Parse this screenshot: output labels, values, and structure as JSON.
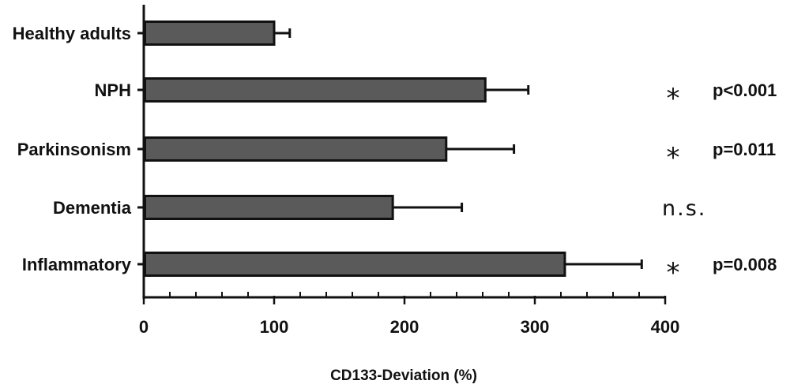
{
  "chart_data": {
    "type": "bar",
    "orientation": "horizontal",
    "xlabel": "CD133-Deviation (%)",
    "xlim": [
      0,
      400
    ],
    "xticks": [
      0,
      100,
      200,
      300,
      400
    ],
    "minor_tick_step": 20,
    "bar_color": "#5a5a5a",
    "categories": [
      "Healthy adults",
      "NPH",
      "Parkinsonism",
      "Dementia",
      "Inflammatory"
    ],
    "values": [
      100,
      262,
      232,
      191,
      323
    ],
    "error_plus": [
      12,
      33,
      52,
      53,
      59
    ],
    "annotations": [
      {
        "star": "",
        "text": ""
      },
      {
        "star": "*",
        "text": "p<0.001"
      },
      {
        "star": "*",
        "text": "p=0.011"
      },
      {
        "star": "",
        "text": "n.s."
      },
      {
        "star": "*",
        "text": "p=0.008"
      }
    ]
  }
}
